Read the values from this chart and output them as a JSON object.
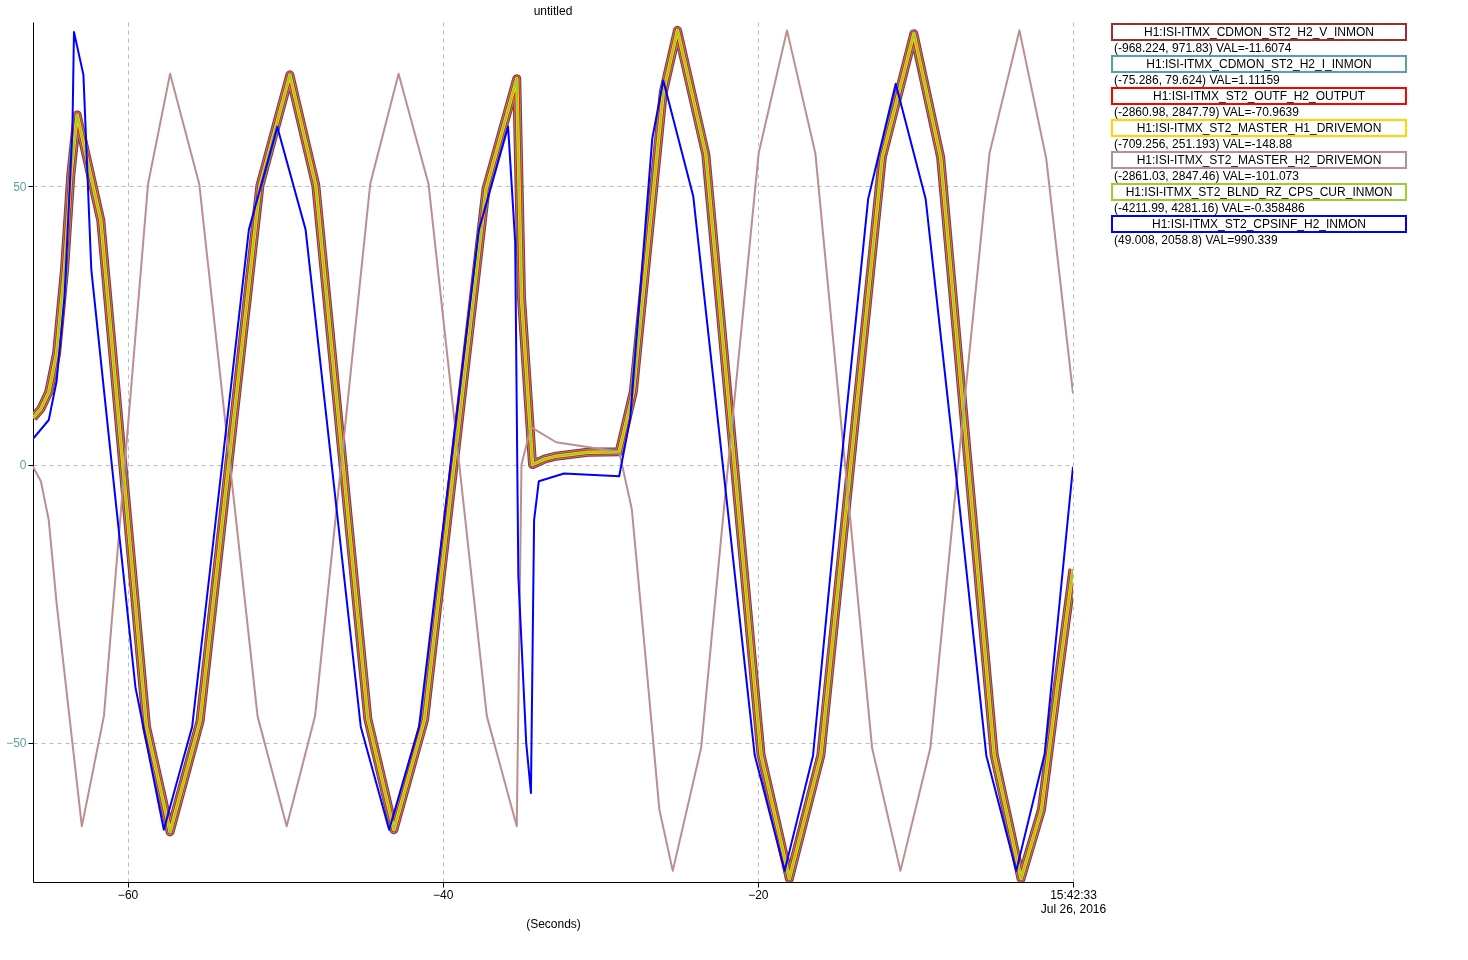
{
  "chart_data": {
    "type": "line",
    "title": "untitled",
    "xlabel": "(Seconds)",
    "xlim": [
      -66,
      0
    ],
    "ylim": [
      -75,
      79.5
    ],
    "xticks": [
      -60,
      -40,
      -20,
      {
        "value": 0,
        "label": "15:42:33\nJul 26, 2016"
      }
    ],
    "yticks": [
      -50,
      0,
      50
    ],
    "grid": true,
    "legend": "right",
    "line_style": "solid",
    "marker": "none",
    "x": [
      -66,
      -65.5,
      -65,
      -64.5,
      -64,
      -63.6,
      -63.2,
      -61.7,
      -60.25,
      -58.8,
      -57.3,
      -55.4,
      -53.5,
      -51.6,
      -49.7,
      -48.05,
      -46.4,
      -44.75,
      -43.1,
      -41.15,
      -39.2,
      -37.25,
      -35.3,
      -35.0,
      -34.3,
      -33.5,
      -32.8,
      -30.8,
      -28.8,
      -27.9,
      -26.95,
      -26.0,
      -25.1,
      -23.3,
      -21.55,
      -19.8,
      -18.0,
      -16.0,
      -14.05,
      -12.1,
      -10.1,
      -8.4,
      -6.7,
      -5.0,
      -3.3,
      -2,
      -1,
      0
    ],
    "series": [
      {
        "name": "H1:ISI-ITMX_CDMON_ST2_H2_V_INMON",
        "color": "#a52a2a",
        "values": [
          8.4,
          10,
          13,
          20,
          35,
          52,
          62.8,
          43.9,
          -1.6,
          -47.1,
          -66,
          -46.1,
          2,
          50.1,
          70,
          50.1,
          2.2,
          -45.7,
          -65.6,
          -45.8,
          1.9,
          49.5,
          69.3,
          30,
          0,
          1,
          1.5,
          2.2,
          2.3,
          13.1,
          40,
          66.9,
          78,
          55.7,
          1.8,
          -52.1,
          -74.4,
          -52.2,
          1.5,
          55.2,
          77.4,
          55.2,
          1.5,
          -52.2,
          -74.4,
          -62,
          -40,
          -18.8
        ]
      },
      {
        "name": "H1:ISI-ITMX_CDMON_ST2_H2_I_INMON",
        "color": "#5f9ea0",
        "values": [
          8.4,
          10,
          13,
          20,
          35,
          52,
          62.8,
          43.9,
          -1.6,
          -47.1,
          -66,
          -46.1,
          2,
          50.1,
          70,
          50.1,
          2.2,
          -45.7,
          -65.6,
          -45.8,
          1.9,
          49.5,
          69.3,
          30,
          0,
          1,
          1.5,
          2.2,
          2.3,
          13.1,
          40,
          66.9,
          78,
          55.7,
          1.8,
          -52.1,
          -74.4,
          -52.2,
          1.5,
          55.2,
          77.4,
          55.2,
          1.5,
          -52.2,
          -74.4,
          -62,
          -40,
          -18.8
        ]
      },
      {
        "name": "H1:ISI-ITMX_ST2_OUTF_H2_OUTPUT",
        "color": "#ff0000",
        "values": [
          8.4,
          10,
          13,
          20,
          35,
          52,
          62.8,
          43.9,
          -1.6,
          -47.1,
          -66,
          -46.1,
          2,
          50.1,
          70,
          50.1,
          2.2,
          -45.7,
          -65.6,
          -45.8,
          1.9,
          49.5,
          69.3,
          30,
          0,
          1,
          1.5,
          2.2,
          2.3,
          13.1,
          40,
          66.9,
          78,
          55.7,
          1.8,
          -52.1,
          -74.4,
          -52.2,
          1.5,
          55.2,
          77.4,
          55.2,
          1.5,
          -52.2,
          -74.4,
          -62,
          -40,
          -18.8
        ]
      },
      {
        "name": "H1:ISI-ITMX_ST2_MASTER_H1_DRIVEMON",
        "color": "#ffd700",
        "values": [
          8.4,
          10,
          13,
          20,
          35,
          52,
          62.8,
          43.9,
          -1.6,
          -47.1,
          -66,
          -46.1,
          2,
          50.1,
          70,
          50.1,
          2.2,
          -45.7,
          -65.6,
          -45.8,
          1.9,
          49.5,
          69.3,
          30,
          0,
          1,
          1.5,
          2.2,
          2.3,
          13.1,
          40,
          66.9,
          78,
          55.7,
          1.8,
          -52.1,
          -74.4,
          -52.2,
          1.5,
          55.2,
          77.4,
          55.2,
          1.5,
          -52.2,
          -74.4,
          -62,
          -40,
          -18.8
        ]
      },
      {
        "name": "H1:ISI-ITMX_ST2_MASTER_H2_DRIVEMON",
        "color": "#bc8f8f",
        "x": [
          -66,
          -65.5,
          -65,
          -64.5,
          -62.9,
          -61.5,
          -60.1,
          -58.7,
          -57.3,
          -55.45,
          -53.6,
          -51.75,
          -49.9,
          -48.1,
          -46.35,
          -44.6,
          -42.8,
          -40.9,
          -39.05,
          -37.2,
          -35.3,
          -35.0,
          -34.4,
          -32.8,
          -28.8,
          -28.0,
          -27.1,
          -26.25,
          -25.4,
          -23.6,
          -21.8,
          -19.95,
          -18.15,
          -16.35,
          -14.55,
          -12.75,
          -10.95,
          -9.05,
          -7.2,
          -5.3,
          -3.4,
          -1.7,
          0
        ],
        "values": [
          -0.4,
          -3,
          -10,
          -25,
          -65,
          -45.2,
          2.6,
          50.4,
          70.2,
          50.4,
          2.6,
          -45.2,
          -65,
          -45.2,
          2.6,
          50.4,
          70.2,
          50.4,
          2.6,
          -45.2,
          -65,
          0,
          6.7,
          4,
          2.3,
          -8.0,
          -35.4,
          -62.0,
          -73,
          -50.9,
          2.5,
          55.9,
          78,
          55.9,
          2.5,
          -50.9,
          -73,
          -50.9,
          2.5,
          55.9,
          78,
          55,
          12.8
        ]
      },
      {
        "name": "H1:ISI-ITMX_ST2_BLND_RZ_CPS_CUR_INMON",
        "color": "#9acd32",
        "values": [
          8.4,
          10,
          13,
          20,
          35,
          52,
          62.8,
          43.9,
          -1.6,
          -47.1,
          -66,
          -46.1,
          2,
          50.1,
          70,
          50.1,
          2.2,
          -45.7,
          -65.6,
          -45.8,
          1.9,
          49.5,
          69.3,
          30,
          0,
          1,
          1.5,
          2.2,
          2.3,
          13.1,
          40,
          66.9,
          78,
          55.7,
          1.8,
          -52.1,
          -74.4,
          -52.2,
          1.5,
          55.2,
          77.4,
          55.2,
          1.5,
          -52.2,
          -74.4,
          -62,
          -40,
          -18.8
        ]
      },
      {
        "name": "H1:ISI-ITMX_ST2_CPSINF_H2_INMON",
        "color": "#0000ff",
        "x": [
          -66,
          -65,
          -64.5,
          -64,
          -63.5,
          -63.4,
          -62.8,
          -62.3,
          -61,
          -59.5,
          -57.7,
          -55.9,
          -54.1,
          -52.3,
          -50.5,
          -48.7,
          -46.95,
          -45.2,
          -43.4,
          -41.5,
          -39.6,
          -37.7,
          -35.85,
          -35.4,
          -35.2,
          -34.7,
          -34.4,
          -34.2,
          -33.9,
          -32.3,
          -28.8,
          -28.1,
          -27.4,
          -26.7,
          -26.0,
          -24.1,
          -22.15,
          -20.2,
          -18.3,
          -16.5,
          -14.8,
          -13.0,
          -11.25,
          -9.35,
          -7.4,
          -5.5,
          -3.6,
          -1.8,
          0
        ],
        "values": [
          4.6,
          8,
          15,
          30,
          60,
          77.7,
          70,
          35,
          0,
          -40,
          -65.6,
          -47.1,
          -2.5,
          42.2,
          60.7,
          42.2,
          -2.5,
          -47.1,
          -65.6,
          -47.1,
          -2.5,
          42.2,
          60.7,
          40,
          -20,
          -50,
          -59,
          -10,
          -3,
          -1.6,
          -2.1,
          8.3,
          33.5,
          58.6,
          69,
          48.2,
          -2,
          -52.2,
          -73,
          -52.3,
          -2.3,
          47.7,
          68.4,
          47.7,
          -2.3,
          -52.3,
          -73,
          -52,
          -0.4
        ]
      }
    ],
    "annotations": [
      "(-968.224, 971.83) VAL=-11.6074",
      "(-75.286, 79.624) VAL=1.11159",
      "(-2860.98, 2847.79) VAL=-70.9639",
      "(-709.256, 251.193) VAL=-148.88",
      "(-2861.03, 2847.46) VAL=-101.073",
      "(-4211.99, 4281.16) VAL=-0.358486",
      "(49.008, 2058.8) VAL=990.339"
    ]
  }
}
